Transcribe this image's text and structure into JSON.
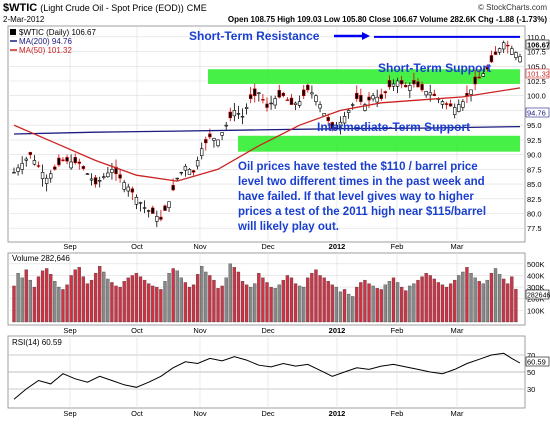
{
  "header": {
    "symbol_title": "$WTIC",
    "description": "(Light Crude Oil - Spot Price (EOD))",
    "exchange": "CME",
    "copyright": "© StockCharts.com",
    "date": "2-Mar-2012",
    "quote": "Open 108.75  High 109.03  Low 105.80  Close 106.67  Volume 282.6K  Chg -1.88 (-1.73%)"
  },
  "legend": {
    "price": "$WTIC (Daily) 106.67",
    "ma200": "MA(200) 94.76",
    "ma50": "MA(50) 101.32"
  },
  "badges": {
    "last": "106.67",
    "ma50": "101.32",
    "ma200": "94.76",
    "vol": "282646",
    "rsi": "60.59"
  },
  "annotations": {
    "resistance": "Short-Term Resistance",
    "short_support": "Short-Term Support",
    "intermediate_support": "Intermediate-Term Support",
    "commentary": [
      "Oil prices have tested the $110 / barrel price",
      "level two different times in the past week and",
      "have failed. If that level gives way to higher",
      "prices a test of the 2011 high near $115/barrel",
      "will likely play out."
    ]
  },
  "volume_panel": {
    "label": "Volume 282,646"
  },
  "rsi_panel": {
    "label": "RSI(14) 60.59"
  },
  "colors": {
    "resistance_line": "#0000ee",
    "annotation_text": "#1a3fd0",
    "support_band": "#33ee33",
    "ma200": "#1a1a80",
    "ma50": "#cc2222",
    "vol_up": "#888888",
    "vol_down": "#cc3344"
  },
  "chart_data": [
    {
      "type": "candlestick",
      "title": "$WTIC (Light Crude Oil - Spot Price (EOD))",
      "x_ticks": [
        "Sep",
        "Oct",
        "Nov",
        "Dec",
        "2012",
        "Feb",
        "Mar"
      ],
      "y_ticks": [
        77.5,
        80.0,
        82.5,
        85.0,
        87.5,
        90.0,
        92.5,
        95.0,
        97.5,
        100.0,
        102.5,
        105.0,
        107.5,
        110.0
      ],
      "ylim": [
        75.5,
        111.5
      ],
      "grid": true,
      "close_path": [
        {
          "x": 0,
          "y": 87
        },
        {
          "x": 4,
          "y": 90
        },
        {
          "x": 8,
          "y": 86
        },
        {
          "x": 12,
          "y": 89
        },
        {
          "x": 16,
          "y": 88.5
        },
        {
          "x": 20,
          "y": 85
        },
        {
          "x": 24,
          "y": 87.5
        },
        {
          "x": 28,
          "y": 84.5
        },
        {
          "x": 32,
          "y": 81
        },
        {
          "x": 36,
          "y": 79
        },
        {
          "x": 38,
          "y": 82
        },
        {
          "x": 40,
          "y": 86
        },
        {
          "x": 42,
          "y": 88
        },
        {
          "x": 44,
          "y": 87
        },
        {
          "x": 46,
          "y": 91
        },
        {
          "x": 48,
          "y": 93
        },
        {
          "x": 50,
          "y": 92.5
        },
        {
          "x": 52,
          "y": 95
        },
        {
          "x": 54,
          "y": 97.5
        },
        {
          "x": 56,
          "y": 96.5
        },
        {
          "x": 58,
          "y": 99.5
        },
        {
          "x": 60,
          "y": 100.5
        },
        {
          "x": 62,
          "y": 98
        },
        {
          "x": 64,
          "y": 99.5
        },
        {
          "x": 66,
          "y": 100
        },
        {
          "x": 68,
          "y": 98.5
        },
        {
          "x": 70,
          "y": 99
        },
        {
          "x": 72,
          "y": 101
        },
        {
          "x": 74,
          "y": 100
        },
        {
          "x": 76,
          "y": 97
        },
        {
          "x": 78,
          "y": 94.5
        },
        {
          "x": 80,
          "y": 95.5
        },
        {
          "x": 82,
          "y": 97.5
        },
        {
          "x": 84,
          "y": 99.5
        },
        {
          "x": 86,
          "y": 98.5
        },
        {
          "x": 88,
          "y": 100
        },
        {
          "x": 90,
          "y": 99.5
        },
        {
          "x": 92,
          "y": 101.5
        },
        {
          "x": 94,
          "y": 102.5
        },
        {
          "x": 96,
          "y": 101.5
        },
        {
          "x": 98,
          "y": 102
        },
        {
          "x": 100,
          "y": 101
        },
        {
          "x": 102,
          "y": 100.5
        },
        {
          "x": 104,
          "y": 99.5
        },
        {
          "x": 106,
          "y": 98.5
        },
        {
          "x": 108,
          "y": 98
        },
        {
          "x": 110,
          "y": 99
        },
        {
          "x": 112,
          "y": 101
        },
        {
          "x": 114,
          "y": 103
        },
        {
          "x": 116,
          "y": 104.5
        },
        {
          "x": 118,
          "y": 107
        },
        {
          "x": 120,
          "y": 109
        },
        {
          "x": 122,
          "y": 108
        },
        {
          "x": 124,
          "y": 106.67
        }
      ],
      "ma200": [
        {
          "x": 0,
          "y": 93.5
        },
        {
          "x": 20,
          "y": 93.8
        },
        {
          "x": 40,
          "y": 94
        },
        {
          "x": 60,
          "y": 94.2
        },
        {
          "x": 80,
          "y": 94.4
        },
        {
          "x": 100,
          "y": 94.5
        },
        {
          "x": 124,
          "y": 94.76
        }
      ],
      "ma50": [
        {
          "x": 0,
          "y": 95
        },
        {
          "x": 10,
          "y": 92
        },
        {
          "x": 20,
          "y": 89
        },
        {
          "x": 30,
          "y": 86.5
        },
        {
          "x": 40,
          "y": 85.5
        },
        {
          "x": 50,
          "y": 87.5
        },
        {
          "x": 60,
          "y": 91.5
        },
        {
          "x": 70,
          "y": 95
        },
        {
          "x": 80,
          "y": 97.5
        },
        {
          "x": 90,
          "y": 98.8
        },
        {
          "x": 100,
          "y": 99.3
        },
        {
          "x": 110,
          "y": 99.8
        },
        {
          "x": 124,
          "y": 101.32
        }
      ],
      "resistance_level": 110.0,
      "short_term_support": [
        102,
        104.5
      ],
      "intermediate_support": [
        90.5,
        93.2
      ]
    },
    {
      "type": "bar",
      "title": "Volume 282,646",
      "y_ticks": [
        "100K",
        "200K",
        "300K",
        "400K",
        "500K"
      ],
      "ylim": [
        0,
        550000
      ],
      "values": [
        310000,
        420000,
        380000,
        450000,
        360000,
        300000,
        390000,
        440000,
        460000,
        410000,
        350000,
        300000,
        280000,
        320000,
        400000,
        450000,
        470000,
        390000,
        330000,
        360000,
        420000,
        480000,
        430000,
        370000,
        340000,
        310000,
        300000,
        350000,
        380000,
        400000,
        420000,
        390000,
        360000,
        330000,
        310000,
        300000,
        280000,
        350000,
        420000,
        460000,
        440000,
        380000,
        340000,
        300000,
        320000,
        410000,
        480000,
        430000,
        400000,
        360000,
        290000,
        310000,
        380000,
        500000,
        470000,
        430000,
        350000,
        320000,
        300000,
        330000,
        420000,
        380000,
        340000,
        300000,
        290000,
        320000,
        360000,
        400000,
        380000,
        330000,
        310000,
        300000,
        380000,
        420000,
        450000,
        400000,
        380000,
        350000,
        320000,
        300000,
        260000,
        280000,
        240000,
        220000,
        300000,
        340000,
        360000,
        330000,
        310000,
        290000,
        280000,
        320000,
        350000,
        380000,
        340000,
        300000,
        270000,
        310000,
        330000,
        360000,
        390000,
        420000,
        400000,
        370000,
        340000,
        320000,
        300000,
        330000,
        360000,
        400000,
        430000,
        470000,
        420000,
        380000,
        350000,
        330000,
        360000,
        420000,
        460000,
        410000,
        370000,
        330000,
        390000,
        282646
      ]
    },
    {
      "type": "line",
      "title": "RSI(14) 60.59",
      "y_ticks": [
        30,
        50,
        70
      ],
      "ylim": [
        10,
        90
      ],
      "values": [
        {
          "x": 0,
          "y": 18
        },
        {
          "x": 3,
          "y": 30
        },
        {
          "x": 6,
          "y": 40
        },
        {
          "x": 9,
          "y": 36
        },
        {
          "x": 12,
          "y": 48
        },
        {
          "x": 15,
          "y": 42
        },
        {
          "x": 18,
          "y": 38
        },
        {
          "x": 21,
          "y": 45
        },
        {
          "x": 24,
          "y": 40
        },
        {
          "x": 27,
          "y": 35
        },
        {
          "x": 30,
          "y": 32
        },
        {
          "x": 33,
          "y": 38
        },
        {
          "x": 36,
          "y": 45
        },
        {
          "x": 39,
          "y": 55
        },
        {
          "x": 42,
          "y": 62
        },
        {
          "x": 45,
          "y": 60
        },
        {
          "x": 48,
          "y": 66
        },
        {
          "x": 51,
          "y": 63
        },
        {
          "x": 54,
          "y": 68
        },
        {
          "x": 57,
          "y": 64
        },
        {
          "x": 60,
          "y": 58
        },
        {
          "x": 63,
          "y": 56
        },
        {
          "x": 66,
          "y": 60
        },
        {
          "x": 69,
          "y": 57
        },
        {
          "x": 72,
          "y": 59
        },
        {
          "x": 75,
          "y": 52
        },
        {
          "x": 78,
          "y": 45
        },
        {
          "x": 81,
          "y": 50
        },
        {
          "x": 84,
          "y": 55
        },
        {
          "x": 87,
          "y": 53
        },
        {
          "x": 90,
          "y": 57
        },
        {
          "x": 93,
          "y": 59
        },
        {
          "x": 96,
          "y": 56
        },
        {
          "x": 99,
          "y": 53
        },
        {
          "x": 102,
          "y": 50
        },
        {
          "x": 105,
          "y": 48
        },
        {
          "x": 108,
          "y": 53
        },
        {
          "x": 111,
          "y": 60
        },
        {
          "x": 114,
          "y": 65
        },
        {
          "x": 117,
          "y": 70
        },
        {
          "x": 120,
          "y": 72
        },
        {
          "x": 122,
          "y": 66
        },
        {
          "x": 124,
          "y": 60.59
        }
      ]
    }
  ]
}
